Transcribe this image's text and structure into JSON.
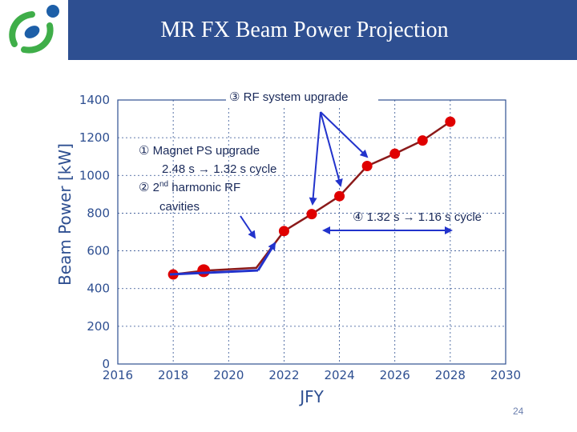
{
  "slide": {
    "title": "MR FX Beam Power Projection",
    "page_number": "24"
  },
  "colors": {
    "header": "#2e4f91",
    "axis": "#2e4f91",
    "series": "#8b1a1a",
    "marker": "#e00000",
    "arrow": "#2233cc",
    "logo_green": "#3fae49",
    "logo_blue": "#1d5fa8"
  },
  "annotations": {
    "upgrade_1_line1": "① Magnet PS upgrade",
    "upgrade_1_line2": "2.48 s → 1.32 s cycle",
    "upgrade_2_prefix": "② 2",
    "upgrade_2_sup": "nd",
    "upgrade_2_suffix": " harmonic RF",
    "upgrade_2_line2": "cavities",
    "upgrade_3": "③ RF system upgrade",
    "upgrade_4": "④ 1.32 s → 1.16 s cycle"
  },
  "chart_data": {
    "type": "line",
    "title": "",
    "xlabel": "JFY",
    "ylabel": "Beam Power [kW]",
    "xlim": [
      2016,
      2030
    ],
    "ylim": [
      0,
      1400
    ],
    "x_ticks": [
      2016,
      2018,
      2020,
      2022,
      2024,
      2026,
      2028,
      2030
    ],
    "y_ticks": [
      0,
      200,
      400,
      600,
      800,
      1000,
      1200,
      1400
    ],
    "grid": true,
    "series": [
      {
        "x": [
          2018,
          2019.1,
          2021,
          2022,
          2023,
          2024,
          2025,
          2026,
          2027,
          2028
        ],
        "y": [
          475,
          495,
          510,
          705,
          795,
          890,
          1050,
          1115,
          1185,
          1285
        ],
        "marker_sizes": [
          "medium",
          "large",
          "none",
          "medium",
          "medium",
          "medium",
          "medium",
          "medium",
          "medium",
          "medium"
        ]
      }
    ]
  }
}
